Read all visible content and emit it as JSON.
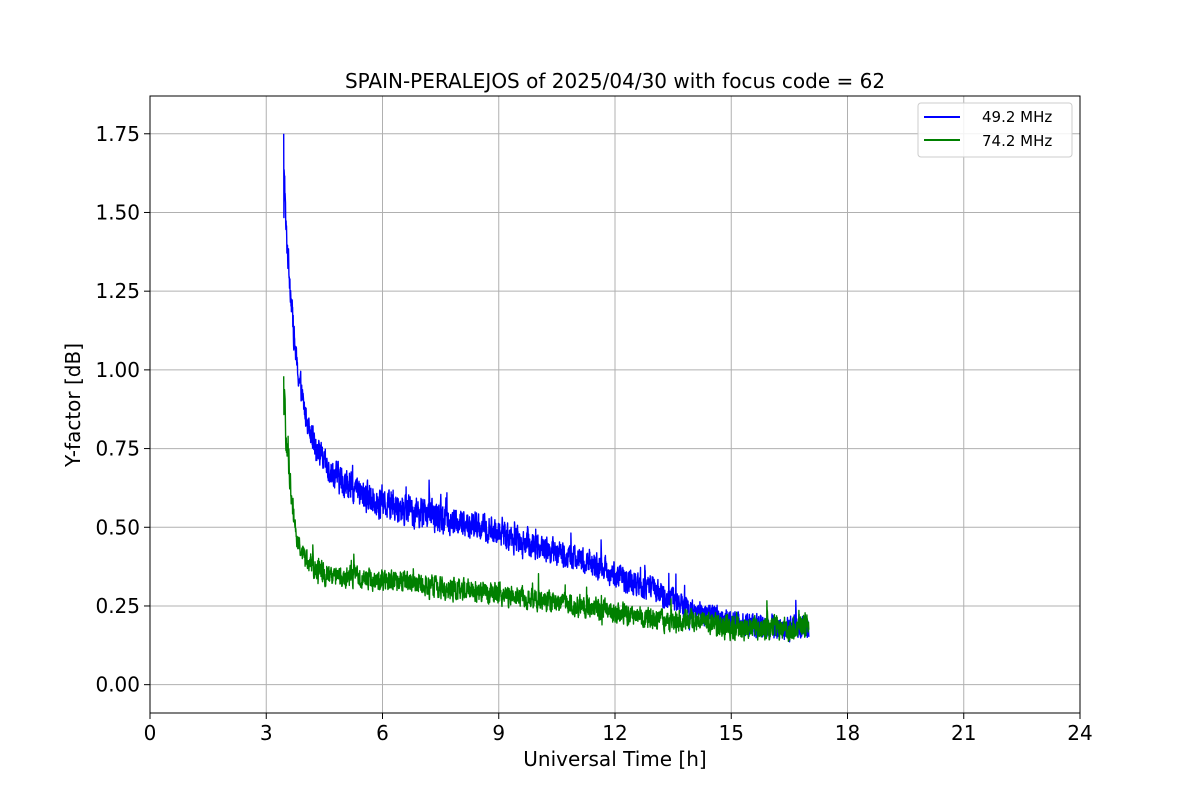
{
  "chart_data": {
    "type": "line",
    "title": "SPAIN-PERALEJOS of 2025/04/30 with focus code = 62",
    "xlabel": "Universal Time [h]",
    "ylabel": "Y-factor [dB]",
    "xlim": [
      0,
      24
    ],
    "ylim": [
      -0.09,
      1.87
    ],
    "xticks": [
      0,
      3,
      6,
      9,
      12,
      15,
      18,
      21,
      24
    ],
    "xtick_labels": [
      "0",
      "3",
      "6",
      "9",
      "12",
      "15",
      "18",
      "21",
      "24"
    ],
    "yticks": [
      0.0,
      0.25,
      0.5,
      0.75,
      1.0,
      1.25,
      1.5,
      1.75
    ],
    "ytick_labels": [
      "0.00",
      "0.25",
      "0.50",
      "0.75",
      "1.00",
      "1.25",
      "1.50",
      "1.75"
    ],
    "grid": true,
    "legend_position": "top-right",
    "series": [
      {
        "name": "49.2 MHz",
        "color": "#0000ff",
        "x": [
          3.45,
          3.5,
          3.6,
          3.7,
          3.8,
          4.0,
          4.25,
          4.5,
          5.0,
          5.5,
          6.0,
          6.5,
          7.0,
          7.5,
          8.0,
          8.5,
          9.0,
          9.5,
          10.0,
          10.5,
          11.0,
          11.5,
          12.0,
          12.5,
          13.0,
          13.5,
          14.0,
          14.5,
          15.0,
          15.5,
          16.0,
          16.5,
          17.0
        ],
        "values": [
          1.75,
          1.45,
          1.3,
          1.12,
          1.0,
          0.86,
          0.77,
          0.7,
          0.64,
          0.6,
          0.58,
          0.56,
          0.55,
          0.53,
          0.51,
          0.5,
          0.48,
          0.46,
          0.44,
          0.42,
          0.4,
          0.38,
          0.35,
          0.32,
          0.3,
          0.27,
          0.24,
          0.22,
          0.2,
          0.19,
          0.18,
          0.18,
          0.19
        ],
        "noise": [
          0.12,
          0.12,
          0.1,
          0.09,
          0.08,
          0.08,
          0.08,
          0.09,
          0.1,
          0.1,
          0.1,
          0.1,
          0.1,
          0.1,
          0.09,
          0.09,
          0.09,
          0.09,
          0.09,
          0.08,
          0.08,
          0.08,
          0.08,
          0.08,
          0.08,
          0.08,
          0.08,
          0.08,
          0.08,
          0.08,
          0.08,
          0.08,
          0.08
        ]
      },
      {
        "name": "74.2 MHz",
        "color": "#008000",
        "x": [
          3.45,
          3.5,
          3.6,
          3.7,
          3.8,
          4.0,
          4.25,
          4.5,
          5.0,
          5.5,
          6.0,
          6.5,
          7.0,
          7.5,
          8.0,
          8.5,
          9.0,
          9.5,
          10.0,
          10.5,
          11.0,
          11.5,
          12.0,
          12.5,
          13.0,
          13.5,
          14.0,
          14.5,
          15.0,
          15.5,
          16.0,
          16.5,
          17.0
        ],
        "values": [
          0.98,
          0.8,
          0.66,
          0.55,
          0.46,
          0.4,
          0.37,
          0.35,
          0.34,
          0.34,
          0.33,
          0.33,
          0.32,
          0.31,
          0.3,
          0.3,
          0.29,
          0.28,
          0.27,
          0.26,
          0.25,
          0.24,
          0.23,
          0.22,
          0.21,
          0.2,
          0.2,
          0.19,
          0.18,
          0.18,
          0.18,
          0.18,
          0.19
        ],
        "noise": [
          0.1,
          0.1,
          0.09,
          0.08,
          0.07,
          0.07,
          0.07,
          0.07,
          0.07,
          0.07,
          0.07,
          0.07,
          0.07,
          0.07,
          0.07,
          0.07,
          0.07,
          0.07,
          0.07,
          0.07,
          0.07,
          0.07,
          0.07,
          0.07,
          0.07,
          0.07,
          0.07,
          0.07,
          0.08,
          0.08,
          0.08,
          0.08,
          0.08
        ]
      }
    ]
  }
}
